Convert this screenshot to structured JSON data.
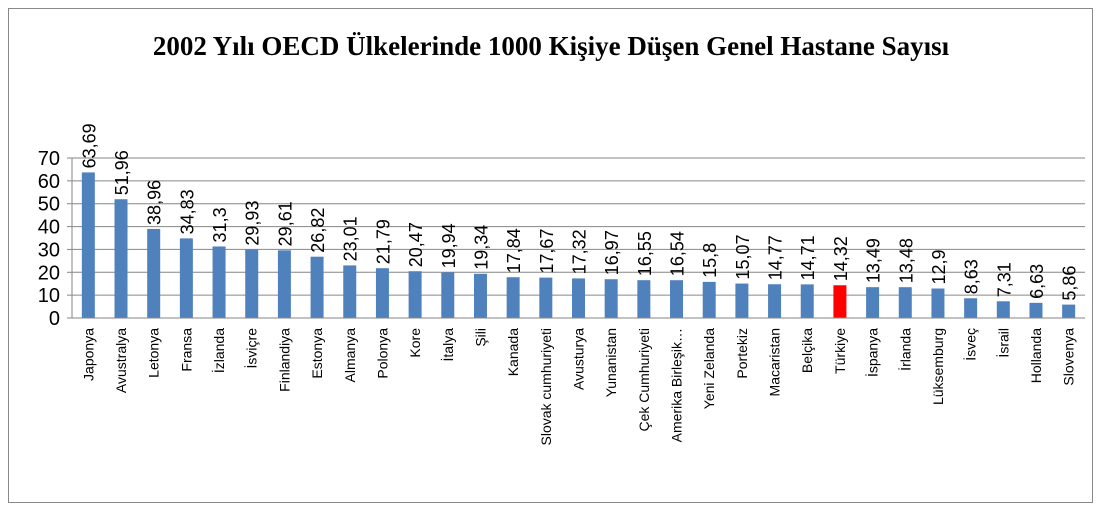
{
  "chart_data": {
    "type": "bar",
    "title": "2002 Yılı OECD Ülkelerinde 1000 Kişiye Düşen Genel Hastane Sayısı",
    "categories": [
      "Japonya",
      "Avustralya",
      "Letonya",
      "Fransa",
      "İzlanda",
      "İsviçre",
      "Finlandiya",
      "Estonya",
      "Almanya",
      "Polonya",
      "Kore",
      "İtalya",
      "Şili",
      "Kanada",
      "Slovak cumhuriyeti",
      "Avusturya",
      "Yunanistan",
      "Çek Cumhuriyeti",
      "Amerika Birleşik…",
      "Yeni Zelanda",
      "Portekiz",
      "Macaristan",
      "Belçika",
      "Türkiye",
      "İspanya",
      "İrlanda",
      "Lüksemburg",
      "İsveç",
      "İsrail",
      "Hollanda",
      "Slovenya"
    ],
    "values": [
      63.69,
      51.96,
      38.96,
      34.83,
      31.3,
      29.93,
      29.61,
      26.82,
      23.01,
      21.79,
      20.47,
      19.94,
      19.34,
      17.84,
      17.67,
      17.32,
      16.97,
      16.55,
      16.54,
      15.8,
      15.07,
      14.77,
      14.71,
      14.32,
      13.49,
      13.48,
      12.9,
      8.63,
      7.31,
      6.63,
      5.86
    ],
    "value_labels": [
      "63,69",
      "51,96",
      "38,96",
      "34,83",
      "31,3",
      "29,93",
      "29,61",
      "26,82",
      "23,01",
      "21,79",
      "20,47",
      "19,94",
      "19,34",
      "17,84",
      "17,67",
      "17,32",
      "16,97",
      "16,55",
      "16,54",
      "15,8",
      "15,07",
      "14,77",
      "14,71",
      "14,32",
      "13,49",
      "13,48",
      "12,9",
      "8,63",
      "7,31",
      "6,63",
      "5,86"
    ],
    "colors": [
      "#4f81bd",
      "#4f81bd",
      "#4f81bd",
      "#4f81bd",
      "#4f81bd",
      "#4f81bd",
      "#4f81bd",
      "#4f81bd",
      "#4f81bd",
      "#4f81bd",
      "#4f81bd",
      "#4f81bd",
      "#4f81bd",
      "#4f81bd",
      "#4f81bd",
      "#4f81bd",
      "#4f81bd",
      "#4f81bd",
      "#4f81bd",
      "#4f81bd",
      "#4f81bd",
      "#4f81bd",
      "#4f81bd",
      "#ff0000",
      "#4f81bd",
      "#4f81bd",
      "#4f81bd",
      "#4f81bd",
      "#4f81bd",
      "#4f81bd",
      "#4f81bd"
    ],
    "ylim": [
      0,
      70
    ],
    "yticks": [
      0,
      10,
      20,
      30,
      40,
      50,
      60,
      70
    ],
    "grid": true
  }
}
